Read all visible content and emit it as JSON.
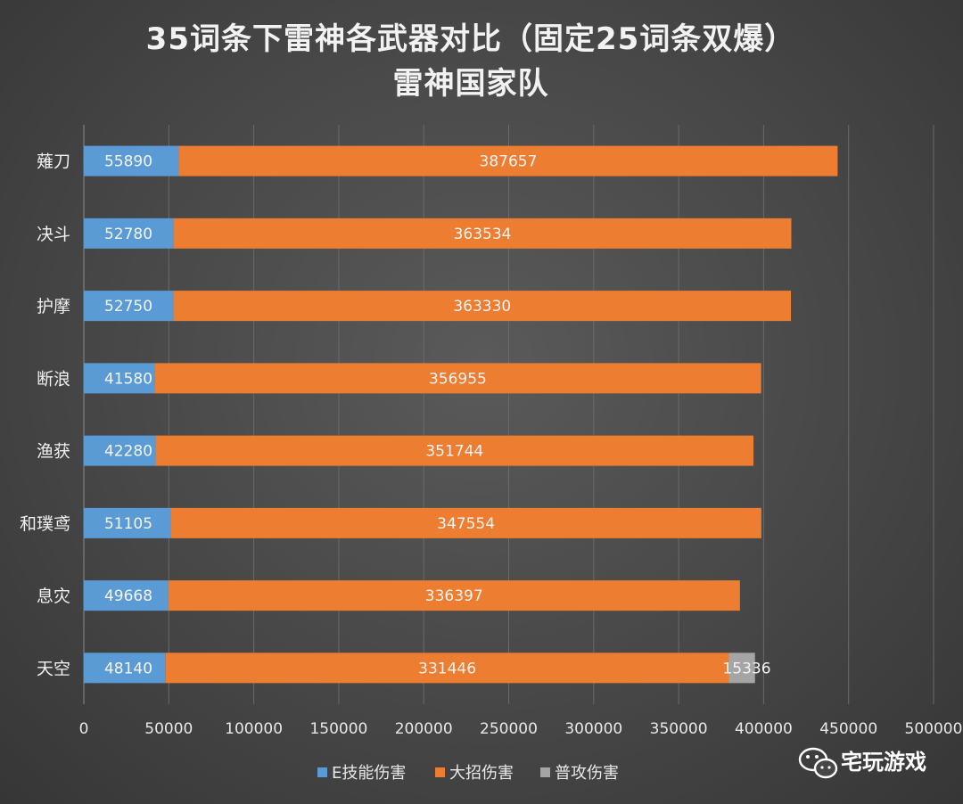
{
  "chart_data": {
    "type": "bar",
    "orientation": "horizontal",
    "stacked": true,
    "title": [
      "35词条下雷神各武器对比（固定25词条双爆）",
      "雷神国家队"
    ],
    "categories": [
      "薙刀",
      "决斗",
      "护摩",
      "断浪",
      "渔获",
      "和璞鸢",
      "息灾",
      "天空"
    ],
    "series": [
      {
        "name": "E技能伤害",
        "values": [
          55890,
          52780,
          52750,
          41580,
          42280,
          51105,
          49668,
          48140
        ],
        "color": "#5b9bd5"
      },
      {
        "name": "大招伤害",
        "values": [
          387657,
          363534,
          363330,
          356955,
          351744,
          347554,
          336397,
          331446
        ],
        "color": "#ed7d31"
      },
      {
        "name": "普攻伤害",
        "values": [
          0,
          0,
          0,
          0,
          0,
          0,
          0,
          15336
        ],
        "color": "#a5a5a5"
      }
    ],
    "xlim": [
      0,
      500000
    ],
    "xticks": [
      0,
      50000,
      100000,
      150000,
      200000,
      250000,
      300000,
      350000,
      400000,
      450000,
      500000
    ],
    "grid": true,
    "legend": "bottom",
    "xlabel": "",
    "ylabel": ""
  },
  "watermark": {
    "text": "宅玩游戏",
    "icon": "wechat-icon"
  }
}
